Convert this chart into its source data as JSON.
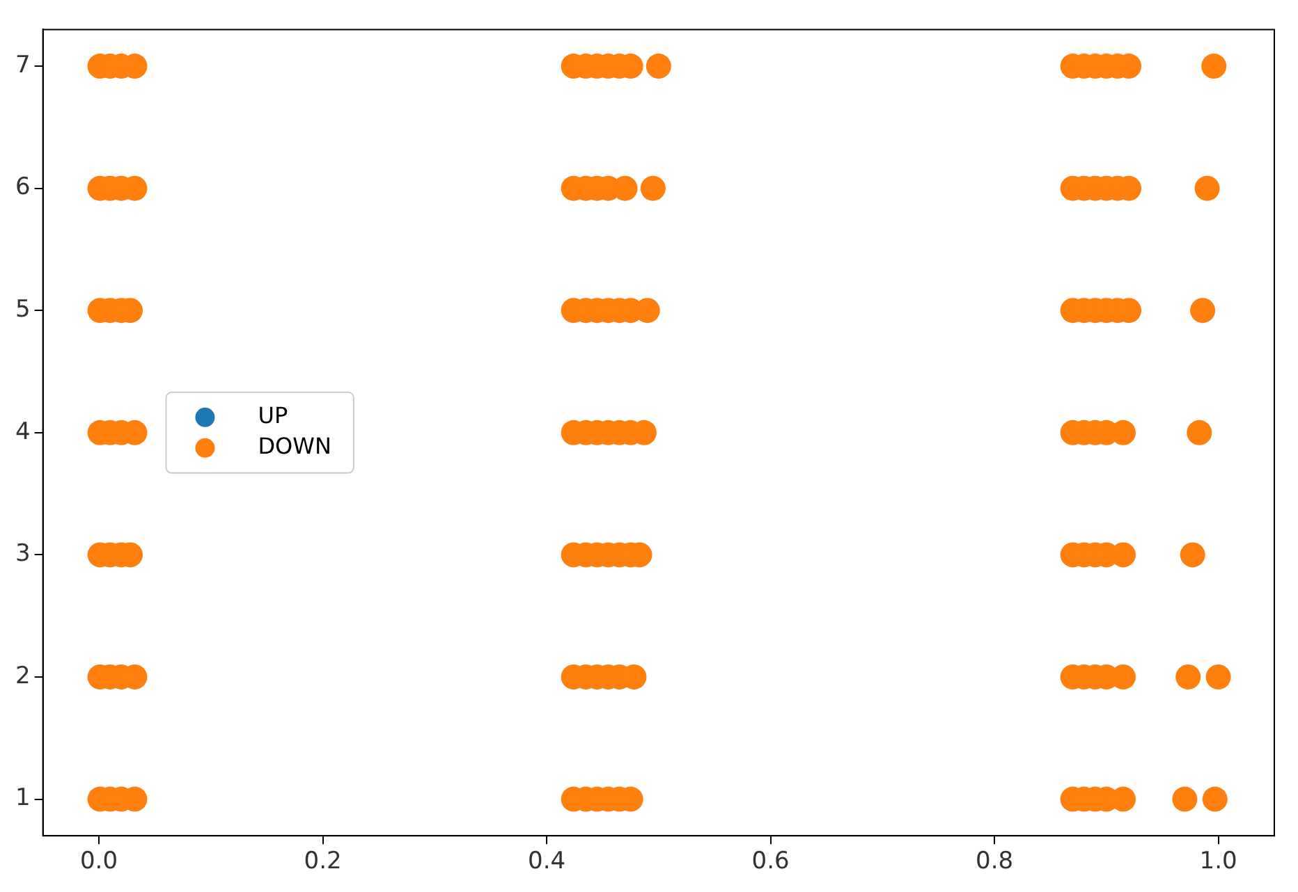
{
  "chart_data": {
    "type": "scatter",
    "xlim": [
      -0.05,
      1.05
    ],
    "ylim": [
      0.7,
      7.3
    ],
    "xticks": [
      {
        "value": 0,
        "label": "0.0"
      },
      {
        "value": 0.2,
        "label": "0.2"
      },
      {
        "value": 0.4,
        "label": "0.4"
      },
      {
        "value": 0.6,
        "label": "0.6"
      },
      {
        "value": 0.8,
        "label": "0.8"
      },
      {
        "value": 1,
        "label": "1.0"
      }
    ],
    "yticks": [
      1,
      2,
      3,
      4,
      5,
      6,
      7
    ],
    "grid": false,
    "legend": "left",
    "marker": "circle",
    "series": [
      {
        "name": "UP",
        "color": "#1f77b4"
      },
      {
        "name": "DOWN",
        "color": "#ff7f0e",
        "x": [
          0.001,
          0.01,
          0.02,
          0.032,
          0.424,
          0.435,
          0.445,
          0.455,
          0.465,
          0.475,
          0.5,
          0.87,
          0.88,
          0.89,
          0.9,
          0.91,
          0.92,
          0.996,
          0.001,
          0.01,
          0.02,
          0.032,
          0.424,
          0.435,
          0.445,
          0.455,
          0.47,
          0.495,
          0.87,
          0.88,
          0.89,
          0.9,
          0.91,
          0.92,
          0.99,
          0.001,
          0.01,
          0.02,
          0.028,
          0.424,
          0.435,
          0.445,
          0.455,
          0.465,
          0.475,
          0.49,
          0.87,
          0.88,
          0.89,
          0.9,
          0.91,
          0.92,
          0.986,
          0.001,
          0.01,
          0.02,
          0.032,
          0.424,
          0.435,
          0.445,
          0.455,
          0.465,
          0.475,
          0.487,
          0.87,
          0.88,
          0.89,
          0.9,
          0.915,
          0.983,
          0.001,
          0.01,
          0.02,
          0.028,
          0.424,
          0.435,
          0.445,
          0.455,
          0.465,
          0.475,
          0.483,
          0.87,
          0.88,
          0.89,
          0.9,
          0.915,
          0.977,
          0.001,
          0.01,
          0.02,
          0.032,
          0.424,
          0.435,
          0.445,
          0.455,
          0.465,
          0.478,
          0.87,
          0.88,
          0.89,
          0.9,
          0.915,
          0.973,
          1.0,
          0.001,
          0.01,
          0.02,
          0.032,
          0.424,
          0.435,
          0.445,
          0.455,
          0.465,
          0.475,
          0.87,
          0.88,
          0.89,
          0.9,
          0.915,
          0.97,
          0.997
        ],
        "values": [
          7,
          7,
          7,
          7,
          7,
          7,
          7,
          7,
          7,
          7,
          7,
          7,
          7,
          7,
          7,
          7,
          7,
          7,
          6,
          6,
          6,
          6,
          6,
          6,
          6,
          6,
          6,
          6,
          6,
          6,
          6,
          6,
          6,
          6,
          6,
          5,
          5,
          5,
          5,
          5,
          5,
          5,
          5,
          5,
          5,
          5,
          5,
          5,
          5,
          5,
          5,
          5,
          5,
          4,
          4,
          4,
          4,
          4,
          4,
          4,
          4,
          4,
          4,
          4,
          4,
          4,
          4,
          4,
          4,
          4,
          3,
          3,
          3,
          3,
          3,
          3,
          3,
          3,
          3,
          3,
          3,
          3,
          3,
          3,
          3,
          3,
          3,
          2,
          2,
          2,
          2,
          2,
          2,
          2,
          2,
          2,
          2,
          2,
          2,
          2,
          2,
          2,
          2,
          2,
          1,
          1,
          1,
          1,
          1,
          1,
          1,
          1,
          1,
          1,
          1,
          1,
          1,
          1,
          1,
          1,
          1
        ]
      }
    ]
  }
}
